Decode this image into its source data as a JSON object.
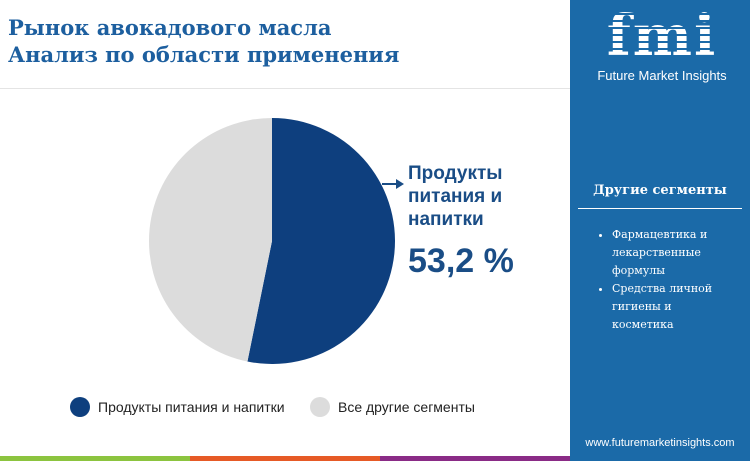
{
  "header": {
    "title_line1": "Рынок авокадового масла",
    "title_line2": "Анализ по области применения"
  },
  "brand": {
    "logo_text": "fmi",
    "name": "Future Market Insights",
    "url": "www.futuremarketinsights.com"
  },
  "side": {
    "title": "Другие сегменты",
    "items": [
      "Фармацевтика и лекарственные формулы",
      "Средства личной гигиены и косметика"
    ]
  },
  "colors": {
    "primary": "#0e3f7e",
    "other": "#dcdcdc",
    "panel": "#1b6aa8",
    "bar": [
      "#8cc43f",
      "#e65a26",
      "#8a2b86"
    ]
  },
  "chart_data": {
    "type": "pie",
    "categories": [
      "Продукты питания и напитки",
      "Все другие сегменты"
    ],
    "values": [
      53.2,
      46.8
    ],
    "callout": {
      "label": "Продукты питания и напитки",
      "label_lines": [
        "Продукты",
        "питания и",
        "напитки"
      ],
      "value": "53,2 %"
    },
    "legend": {
      "items": [
        "Продукты питания и напитки",
        "Все другие сегменты"
      ],
      "position": "bottom"
    }
  }
}
